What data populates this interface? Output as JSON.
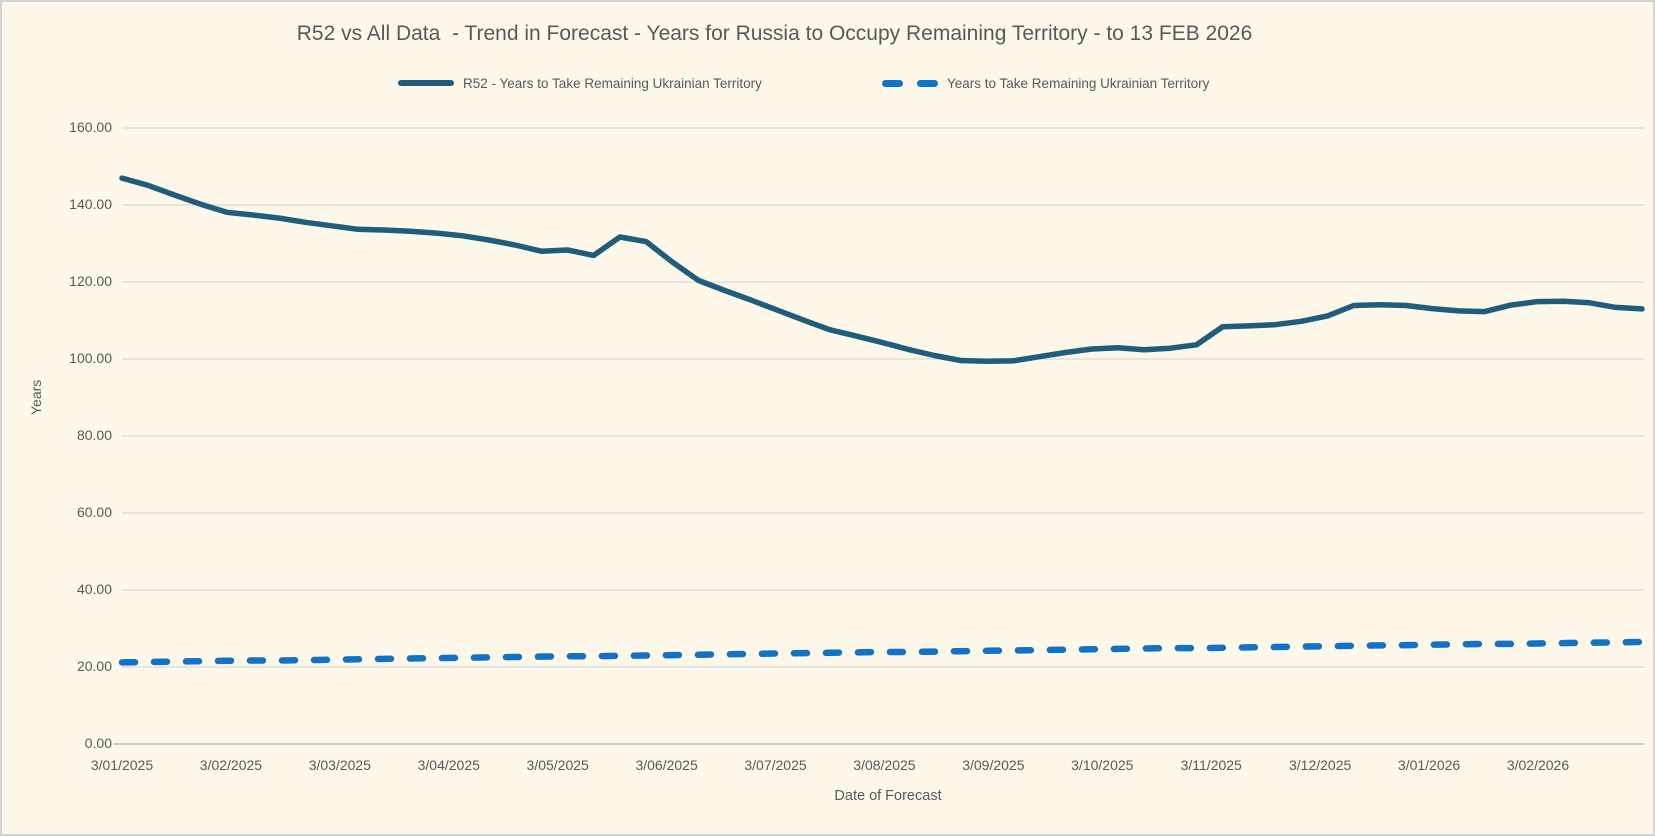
{
  "colors": {
    "background": "#fdf8ea",
    "border": "#d3d3d3",
    "gridline": "#d9d9d9",
    "axis_line": "#bdbdbd",
    "text": "#595959"
  },
  "chart_data": {
    "type": "line",
    "title": "R52 vs All Data  - Trend in Forecast - Years for Russia to Occupy Remaining Territory - to 13 FEB 2026",
    "xlabel": "Date of Forecast",
    "ylabel": "Years",
    "ylim": [
      0,
      160
    ],
    "y_tick_interval": 20,
    "y_tick_labels": [
      "0.00",
      "20.00",
      "40.00",
      "60.00",
      "80.00",
      "100.00",
      "120.00",
      "140.00",
      "160.00"
    ],
    "x_tick_labels": [
      "3/01/2025",
      "3/02/2025",
      "3/03/2025",
      "3/04/2025",
      "3/05/2025",
      "3/06/2025",
      "3/07/2025",
      "3/08/2025",
      "3/09/2025",
      "3/10/2025",
      "3/11/2025",
      "3/12/2025",
      "3/01/2026",
      "3/02/2026"
    ],
    "grid": "horizontal-only",
    "legend_position": "top-center",
    "x_sampling": "weekly",
    "series": [
      {
        "name": "R52 - Years to Take Remaining Ukrainian Territory",
        "line_style": "solid",
        "color": "#1f5d7b",
        "values": [
          147.0,
          145.1,
          142.6,
          140.2,
          138.1,
          137.4,
          136.6,
          135.5,
          134.6,
          133.7,
          133.5,
          133.2,
          132.7,
          132.0,
          130.9,
          129.6,
          128.0,
          128.3,
          126.9,
          131.7,
          130.5,
          125.2,
          120.4,
          117.8,
          115.3,
          112.7,
          110.1,
          107.6,
          106.0,
          104.3,
          102.5,
          100.9,
          99.6,
          99.4,
          99.5,
          100.6,
          101.7,
          102.6,
          102.9,
          102.4,
          102.8,
          103.7,
          108.4,
          108.6,
          108.9,
          109.8,
          111.2,
          113.9,
          114.1,
          113.9,
          113.1,
          112.5,
          112.3,
          114.0,
          114.9,
          115.0,
          114.6,
          113.4,
          113.0
        ]
      },
      {
        "name": "Years to Take Remaining Ukrainian Territory",
        "line_style": "dashed",
        "color": "#1273c4",
        "values": [
          21.2,
          21.3,
          21.4,
          21.5,
          21.6,
          21.7,
          21.7,
          21.8,
          21.9,
          22.0,
          22.1,
          22.2,
          22.3,
          22.4,
          22.5,
          22.6,
          22.7,
          22.8,
          22.8,
          22.9,
          23.0,
          23.1,
          23.2,
          23.3,
          23.4,
          23.5,
          23.6,
          23.7,
          23.8,
          23.9,
          23.9,
          24.0,
          24.1,
          24.2,
          24.3,
          24.4,
          24.5,
          24.6,
          24.7,
          24.8,
          24.9,
          24.9,
          25.0,
          25.1,
          25.2,
          25.3,
          25.4,
          25.5,
          25.6,
          25.7,
          25.8,
          25.9,
          26.0,
          26.0,
          26.1,
          26.2,
          26.3,
          26.4,
          26.5
        ]
      }
    ]
  }
}
